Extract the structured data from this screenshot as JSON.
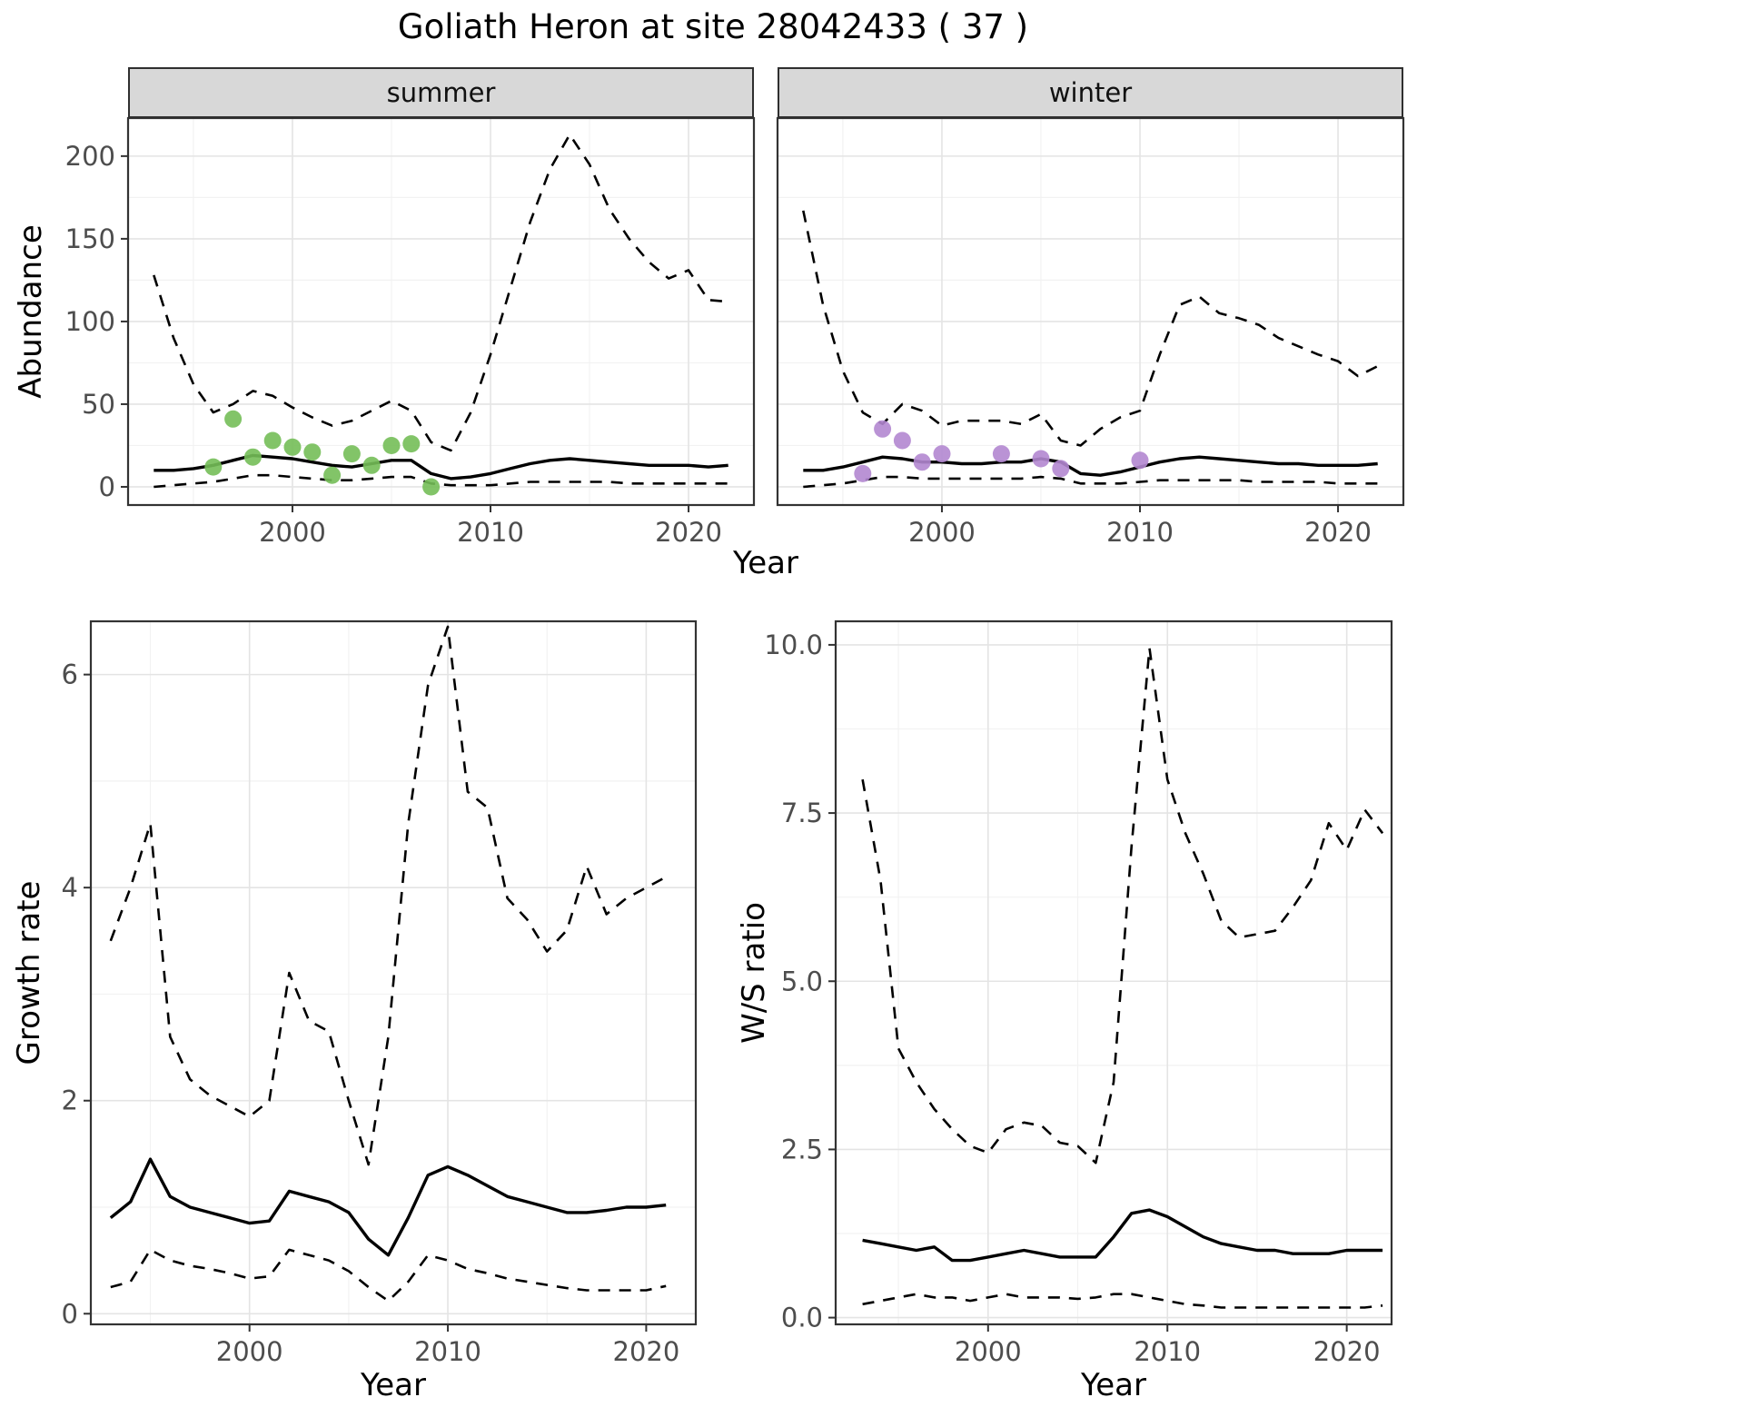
{
  "title": "Goliath Heron at site 28042433 ( 37 )",
  "colors": {
    "summer_point": "#74be58",
    "winter_point": "#b287d0",
    "line": "#000000",
    "grid_major": "#e4e4e4",
    "grid_minor": "#f2f2f2",
    "panel_bg": "#ffffff",
    "panel_border": "#333333",
    "strip_bg": "#d8d8d8",
    "tick_label": "#4d4d4d",
    "tick_mark": "#333333"
  },
  "chart_data": [
    {
      "id": "abundance",
      "type": "line",
      "title": "Goliath Heron at site 28042433 ( 37 )",
      "xlabel": "Year",
      "ylabel": "Abundance",
      "xlim": [
        1991.7,
        2023.3
      ],
      "ylim": [
        -11,
        223
      ],
      "xticks": [
        2000,
        2010,
        2020
      ],
      "xtick_labels": [
        "2000",
        "2010",
        "2020"
      ],
      "yticks": [
        0,
        50,
        100,
        150,
        200
      ],
      "ytick_labels": [
        "0",
        "50",
        "100",
        "150",
        "200"
      ],
      "grid": true,
      "legend": "none",
      "facets": [
        {
          "label": "summer",
          "x": [
            1993,
            1994,
            1995,
            1996,
            1997,
            1998,
            1999,
            2000,
            2001,
            2002,
            2003,
            2004,
            2005,
            2006,
            2007,
            2008,
            2009,
            2010,
            2011,
            2012,
            2013,
            2014,
            2015,
            2016,
            2017,
            2018,
            2019,
            2020,
            2021,
            2022
          ],
          "series": [
            {
              "name": "upper-ci",
              "style": "dashed",
              "values": [
                128,
                90,
                62,
                45,
                50,
                58,
                55,
                48,
                42,
                37,
                40,
                46,
                52,
                46,
                27,
                22,
                45,
                80,
                120,
                160,
                192,
                213,
                195,
                168,
                150,
                136,
                126,
                131,
                113,
                112
              ]
            },
            {
              "name": "estimate",
              "style": "solid",
              "values": [
                10,
                10,
                11,
                13,
                16,
                19,
                18,
                17,
                15,
                13,
                12,
                14,
                16,
                16,
                8,
                5,
                6,
                8,
                11,
                14,
                16,
                17,
                16,
                15,
                14,
                13,
                13,
                13,
                12,
                13
              ]
            },
            {
              "name": "lower-ci",
              "style": "dashed",
              "values": [
                0,
                1,
                2,
                3,
                5,
                7,
                7,
                6,
                5,
                4,
                4,
                5,
                6,
                6,
                2,
                1,
                1,
                1,
                2,
                3,
                3,
                3,
                3,
                3,
                2,
                2,
                2,
                2,
                2,
                2
              ]
            }
          ],
          "points": {
            "name": "observed-counts",
            "color_key": "summer_point",
            "x": [
              1996,
              1997,
              1998,
              1999,
              2000,
              2001,
              2002,
              2003,
              2004,
              2005,
              2006,
              2007
            ],
            "y": [
              12,
              41,
              18,
              28,
              24,
              21,
              7,
              20,
              13,
              25,
              26,
              0
            ]
          }
        },
        {
          "label": "winter",
          "x": [
            1993,
            1994,
            1995,
            1996,
            1997,
            1998,
            1999,
            2000,
            2001,
            2002,
            2003,
            2004,
            2005,
            2006,
            2007,
            2008,
            2009,
            2010,
            2011,
            2012,
            2013,
            2014,
            2015,
            2016,
            2017,
            2018,
            2019,
            2020,
            2021,
            2022
          ],
          "series": [
            {
              "name": "upper-ci",
              "style": "dashed",
              "values": [
                167,
                110,
                70,
                45,
                38,
                50,
                46,
                37,
                40,
                40,
                40,
                38,
                44,
                28,
                25,
                35,
                42,
                46,
                80,
                110,
                115,
                105,
                102,
                98,
                90,
                85,
                80,
                76,
                67,
                73
              ]
            },
            {
              "name": "estimate",
              "style": "solid",
              "values": [
                10,
                10,
                12,
                15,
                18,
                17,
                15,
                15,
                14,
                14,
                15,
                15,
                17,
                15,
                8,
                7,
                9,
                12,
                15,
                17,
                18,
                17,
                16,
                15,
                14,
                14,
                13,
                13,
                13,
                14
              ]
            },
            {
              "name": "lower-ci",
              "style": "dashed",
              "values": [
                0,
                1,
                2,
                4,
                6,
                6,
                5,
                5,
                5,
                5,
                5,
                5,
                6,
                5,
                2,
                2,
                2,
                3,
                4,
                4,
                4,
                4,
                4,
                3,
                3,
                3,
                3,
                2,
                2,
                2
              ]
            }
          ],
          "points": {
            "name": "observed-counts",
            "color_key": "winter_point",
            "x": [
              1996,
              1997,
              1998,
              1999,
              2000,
              2003,
              2005,
              2006,
              2010
            ],
            "y": [
              8,
              35,
              28,
              15,
              20,
              20,
              17,
              11,
              16
            ]
          }
        }
      ]
    },
    {
      "id": "growth_rate",
      "type": "line",
      "title": "",
      "xlabel": "Year",
      "ylabel": "Growth rate",
      "xlim": [
        1992,
        2022.5
      ],
      "ylim": [
        -0.1,
        6.5
      ],
      "xticks": [
        2000,
        2010,
        2020
      ],
      "xtick_labels": [
        "2000",
        "2010",
        "2020"
      ],
      "yticks": [
        0,
        2,
        4,
        6
      ],
      "ytick_labels": [
        "0",
        "2",
        "4",
        "6"
      ],
      "grid": true,
      "legend": "none",
      "facets": [
        {
          "label": "",
          "x": [
            1993,
            1994,
            1995,
            1996,
            1997,
            1998,
            1999,
            2000,
            2001,
            2002,
            2003,
            2004,
            2005,
            2006,
            2007,
            2008,
            2009,
            2010,
            2011,
            2012,
            2013,
            2014,
            2015,
            2016,
            2017,
            2018,
            2019,
            2020,
            2021
          ],
          "series": [
            {
              "name": "upper-ci",
              "style": "dashed",
              "values": [
                3.5,
                4.0,
                4.6,
                2.6,
                2.2,
                2.05,
                1.95,
                1.85,
                2.0,
                3.2,
                2.75,
                2.65,
                2.0,
                1.4,
                2.6,
                4.6,
                5.9,
                6.45,
                4.9,
                4.75,
                3.9,
                3.7,
                3.4,
                3.6,
                4.2,
                3.75,
                3.9,
                4.0,
                4.1
              ]
            },
            {
              "name": "estimate",
              "style": "solid",
              "values": [
                0.9,
                1.05,
                1.45,
                1.1,
                1.0,
                0.95,
                0.9,
                0.85,
                0.87,
                1.15,
                1.1,
                1.05,
                0.95,
                0.7,
                0.55,
                0.9,
                1.3,
                1.38,
                1.3,
                1.2,
                1.1,
                1.05,
                1.0,
                0.95,
                0.95,
                0.97,
                1.0,
                1.0,
                1.02
              ]
            },
            {
              "name": "lower-ci",
              "style": "dashed",
              "values": [
                0.25,
                0.3,
                0.6,
                0.5,
                0.45,
                0.42,
                0.38,
                0.33,
                0.35,
                0.6,
                0.55,
                0.5,
                0.4,
                0.25,
                0.12,
                0.3,
                0.55,
                0.5,
                0.42,
                0.38,
                0.33,
                0.3,
                0.27,
                0.24,
                0.22,
                0.22,
                0.22,
                0.22,
                0.26
              ]
            }
          ]
        }
      ]
    },
    {
      "id": "ws_ratio",
      "type": "line",
      "title": "",
      "xlabel": "Year",
      "ylabel": "W/S ratio",
      "xlim": [
        1991.5,
        2022.5
      ],
      "ylim": [
        -0.1,
        10.35
      ],
      "xticks": [
        2000,
        2010,
        2020
      ],
      "xtick_labels": [
        "2000",
        "2010",
        "2020"
      ],
      "yticks": [
        0,
        2.5,
        5,
        7.5,
        10
      ],
      "ytick_labels": [
        "0.0",
        "2.5",
        "5.0",
        "7.5",
        "10.0"
      ],
      "grid": true,
      "legend": "none",
      "facets": [
        {
          "label": "",
          "x": [
            1993,
            1994,
            1995,
            1996,
            1997,
            1998,
            1999,
            2000,
            2001,
            2002,
            2003,
            2004,
            2005,
            2006,
            2007,
            2008,
            2009,
            2010,
            2011,
            2012,
            2013,
            2014,
            2015,
            2016,
            2017,
            2018,
            2019,
            2020,
            2021,
            2022
          ],
          "series": [
            {
              "name": "upper-ci",
              "style": "dashed",
              "values": [
                8.0,
                6.5,
                4.0,
                3.5,
                3.1,
                2.8,
                2.55,
                2.45,
                2.8,
                2.9,
                2.85,
                2.6,
                2.55,
                2.3,
                3.5,
                7.0,
                9.95,
                8.0,
                7.2,
                6.6,
                5.9,
                5.65,
                5.7,
                5.75,
                6.1,
                6.5,
                7.35,
                6.95,
                7.55,
                7.2
              ]
            },
            {
              "name": "estimate",
              "style": "solid",
              "values": [
                1.15,
                1.1,
                1.05,
                1.0,
                1.05,
                0.85,
                0.85,
                0.9,
                0.95,
                1.0,
                0.95,
                0.9,
                0.9,
                0.9,
                1.2,
                1.55,
                1.6,
                1.5,
                1.35,
                1.2,
                1.1,
                1.05,
                1.0,
                1.0,
                0.95,
                0.95,
                0.95,
                1.0,
                1.0,
                1.0
              ]
            },
            {
              "name": "lower-ci",
              "style": "dashed",
              "values": [
                0.2,
                0.25,
                0.3,
                0.35,
                0.3,
                0.3,
                0.25,
                0.3,
                0.35,
                0.3,
                0.3,
                0.3,
                0.28,
                0.3,
                0.35,
                0.35,
                0.3,
                0.25,
                0.2,
                0.18,
                0.15,
                0.15,
                0.15,
                0.15,
                0.15,
                0.15,
                0.15,
                0.15,
                0.15,
                0.18
              ]
            }
          ]
        }
      ]
    }
  ]
}
